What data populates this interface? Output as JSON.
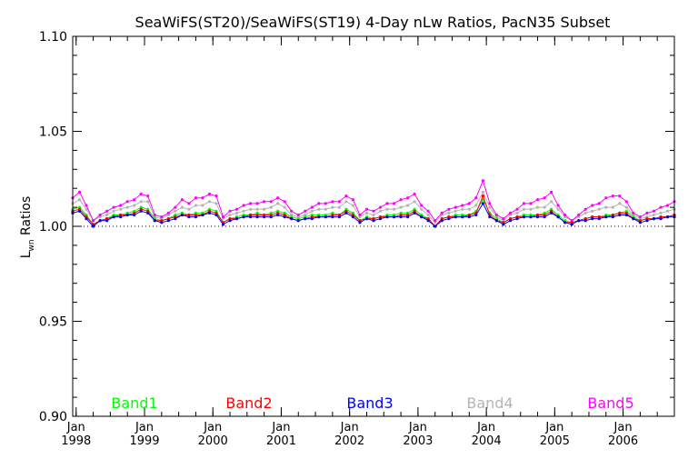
{
  "chart_data": {
    "type": "line",
    "title": "SeaWiFS(ST20)/SeaWiFS(ST19) 4-Day nLw Ratios, PacN35 Subset",
    "ylabel_main": "L",
    "ylabel_sub": "wn",
    "ylabel_rest": " Ratios",
    "ylim": [
      0.9,
      1.1
    ],
    "yticks": [
      {
        "value": 0.9,
        "label": "0.90"
      },
      {
        "value": 0.95,
        "label": "0.95"
      },
      {
        "value": 1.0,
        "label": "1.00"
      },
      {
        "value": 1.05,
        "label": "1.05"
      },
      {
        "value": 1.1,
        "label": "1.10"
      }
    ],
    "xlim": [
      1997.95,
      2006.75
    ],
    "xticks": [
      {
        "value": 1998.0,
        "month": "Jan",
        "year": "1998"
      },
      {
        "value": 1999.0,
        "month": "Jan",
        "year": "1999"
      },
      {
        "value": 2000.0,
        "month": "Jan",
        "year": "2000"
      },
      {
        "value": 2001.0,
        "month": "Jan",
        "year": "2001"
      },
      {
        "value": 2002.0,
        "month": "Jan",
        "year": "2002"
      },
      {
        "value": 2003.0,
        "month": "Jan",
        "year": "2003"
      },
      {
        "value": 2004.0,
        "month": "Jan",
        "year": "2004"
      },
      {
        "value": 2005.0,
        "month": "Jan",
        "year": "2005"
      },
      {
        "value": 2006.0,
        "month": "Jan",
        "year": "2006"
      }
    ],
    "reference_line": 1.0,
    "grid": false,
    "legend": "bottom",
    "x": [
      1997.95,
      1998.05,
      1998.15,
      1998.25,
      1998.35,
      1998.45,
      1998.55,
      1998.65,
      1998.75,
      1998.85,
      1998.95,
      1999.05,
      1999.15,
      1999.25,
      1999.35,
      1999.45,
      1999.55,
      1999.65,
      1999.75,
      1999.85,
      1999.95,
      2000.05,
      2000.15,
      2000.25,
      2000.35,
      2000.45,
      2000.55,
      2000.65,
      2000.75,
      2000.85,
      2000.95,
      2001.05,
      2001.15,
      2001.25,
      2001.35,
      2001.45,
      2001.55,
      2001.65,
      2001.75,
      2001.85,
      2001.95,
      2002.05,
      2002.15,
      2002.25,
      2002.35,
      2002.45,
      2002.55,
      2002.65,
      2002.75,
      2002.85,
      2002.95,
      2003.05,
      2003.15,
      2003.25,
      2003.35,
      2003.45,
      2003.55,
      2003.65,
      2003.75,
      2003.85,
      2003.95,
      2004.05,
      2004.15,
      2004.25,
      2004.35,
      2004.45,
      2004.55,
      2004.65,
      2004.75,
      2004.85,
      2004.95,
      2005.05,
      2005.15,
      2005.25,
      2005.35,
      2005.45,
      2005.55,
      2005.65,
      2005.75,
      2005.85,
      2005.95,
      2006.05,
      2006.15,
      2006.25,
      2006.35,
      2006.45,
      2006.55,
      2006.65,
      2006.75
    ],
    "series": [
      {
        "name": "Band1",
        "color": "#00ff00",
        "values": [
          1.009,
          1.01,
          1.006,
          1.001,
          1.003,
          1.004,
          1.006,
          1.006,
          1.007,
          1.008,
          1.01,
          1.009,
          1.004,
          1.003,
          1.004,
          1.006,
          1.007,
          1.006,
          1.007,
          1.007,
          1.009,
          1.008,
          1.002,
          1.004,
          1.005,
          1.006,
          1.006,
          1.007,
          1.006,
          1.007,
          1.008,
          1.007,
          1.005,
          1.004,
          1.005,
          1.006,
          1.006,
          1.006,
          1.007,
          1.006,
          1.009,
          1.007,
          1.003,
          1.005,
          1.004,
          1.005,
          1.006,
          1.006,
          1.007,
          1.007,
          1.009,
          1.006,
          1.004,
          1.0,
          1.004,
          1.005,
          1.006,
          1.006,
          1.006,
          1.008,
          1.014,
          1.007,
          1.004,
          1.002,
          1.004,
          1.005,
          1.006,
          1.006,
          1.006,
          1.007,
          1.009,
          1.006,
          1.003,
          1.002,
          1.003,
          1.004,
          1.005,
          1.005,
          1.006,
          1.006,
          1.007,
          1.008,
          1.005,
          1.003,
          1.004,
          1.004,
          1.005,
          1.005,
          1.006
        ]
      },
      {
        "name": "Band2",
        "color": "#ff0000",
        "values": [
          1.008,
          1.009,
          1.005,
          1.001,
          1.003,
          1.004,
          1.005,
          1.006,
          1.006,
          1.007,
          1.009,
          1.008,
          1.003,
          1.003,
          1.004,
          1.005,
          1.006,
          1.006,
          1.006,
          1.006,
          1.008,
          1.007,
          1.002,
          1.004,
          1.004,
          1.005,
          1.006,
          1.006,
          1.006,
          1.006,
          1.007,
          1.006,
          1.004,
          1.003,
          1.004,
          1.005,
          1.005,
          1.005,
          1.006,
          1.006,
          1.008,
          1.006,
          1.003,
          1.004,
          1.004,
          1.005,
          1.005,
          1.005,
          1.006,
          1.006,
          1.008,
          1.005,
          1.004,
          1.0,
          1.004,
          1.005,
          1.005,
          1.005,
          1.006,
          1.007,
          1.016,
          1.006,
          1.003,
          1.002,
          1.004,
          1.005,
          1.005,
          1.005,
          1.006,
          1.006,
          1.008,
          1.005,
          1.002,
          1.002,
          1.003,
          1.004,
          1.005,
          1.005,
          1.005,
          1.006,
          1.007,
          1.007,
          1.004,
          1.003,
          1.004,
          1.004,
          1.005,
          1.005,
          1.006
        ]
      },
      {
        "name": "Band3",
        "color": "#0000ff",
        "values": [
          1.007,
          1.008,
          1.004,
          1.0,
          1.003,
          1.003,
          1.005,
          1.005,
          1.006,
          1.006,
          1.008,
          1.007,
          1.003,
          1.002,
          1.003,
          1.004,
          1.006,
          1.005,
          1.005,
          1.006,
          1.007,
          1.006,
          1.001,
          1.003,
          1.004,
          1.005,
          1.005,
          1.005,
          1.005,
          1.005,
          1.006,
          1.005,
          1.004,
          1.003,
          1.004,
          1.004,
          1.005,
          1.005,
          1.005,
          1.005,
          1.007,
          1.005,
          1.002,
          1.004,
          1.003,
          1.004,
          1.005,
          1.005,
          1.005,
          1.005,
          1.007,
          1.005,
          1.003,
          1.0,
          1.003,
          1.004,
          1.005,
          1.005,
          1.005,
          1.006,
          1.012,
          1.005,
          1.003,
          1.001,
          1.003,
          1.004,
          1.005,
          1.005,
          1.005,
          1.005,
          1.007,
          1.005,
          1.002,
          1.001,
          1.003,
          1.003,
          1.004,
          1.004,
          1.005,
          1.005,
          1.006,
          1.006,
          1.004,
          1.002,
          1.003,
          1.004,
          1.004,
          1.005,
          1.005
        ]
      },
      {
        "name": "Band4",
        "color": "#b4b4b4",
        "values": [
          1.012,
          1.014,
          1.009,
          1.003,
          1.005,
          1.006,
          1.008,
          1.009,
          1.01,
          1.011,
          1.013,
          1.013,
          1.005,
          1.004,
          1.006,
          1.008,
          1.01,
          1.009,
          1.011,
          1.011,
          1.013,
          1.012,
          1.004,
          1.006,
          1.007,
          1.008,
          1.009,
          1.009,
          1.009,
          1.01,
          1.012,
          1.01,
          1.006,
          1.005,
          1.006,
          1.008,
          1.009,
          1.009,
          1.01,
          1.01,
          1.013,
          1.011,
          1.005,
          1.007,
          1.006,
          1.008,
          1.009,
          1.009,
          1.01,
          1.011,
          1.013,
          1.009,
          1.006,
          1.002,
          1.006,
          1.007,
          1.008,
          1.009,
          1.009,
          1.011,
          1.018,
          1.01,
          1.005,
          1.003,
          1.006,
          1.007,
          1.009,
          1.009,
          1.01,
          1.01,
          1.013,
          1.009,
          1.005,
          1.003,
          1.005,
          1.007,
          1.008,
          1.009,
          1.01,
          1.01,
          1.012,
          1.01,
          1.006,
          1.004,
          1.005,
          1.006,
          1.007,
          1.008,
          1.009
        ]
      },
      {
        "name": "Band5",
        "color": "#ff00ff",
        "values": [
          1.015,
          1.018,
          1.011,
          1.003,
          1.006,
          1.008,
          1.01,
          1.011,
          1.013,
          1.014,
          1.017,
          1.016,
          1.006,
          1.005,
          1.007,
          1.01,
          1.014,
          1.012,
          1.015,
          1.015,
          1.017,
          1.016,
          1.005,
          1.008,
          1.009,
          1.011,
          1.012,
          1.012,
          1.013,
          1.013,
          1.015,
          1.013,
          1.008,
          1.006,
          1.008,
          1.01,
          1.012,
          1.012,
          1.013,
          1.013,
          1.016,
          1.014,
          1.006,
          1.009,
          1.008,
          1.01,
          1.012,
          1.012,
          1.014,
          1.015,
          1.017,
          1.011,
          1.008,
          1.003,
          1.007,
          1.009,
          1.01,
          1.011,
          1.012,
          1.015,
          1.024,
          1.012,
          1.006,
          1.004,
          1.007,
          1.009,
          1.012,
          1.012,
          1.014,
          1.015,
          1.018,
          1.011,
          1.006,
          1.003,
          1.006,
          1.009,
          1.011,
          1.012,
          1.015,
          1.016,
          1.016,
          1.013,
          1.007,
          1.005,
          1.007,
          1.008,
          1.01,
          1.011,
          1.013
        ]
      }
    ]
  }
}
